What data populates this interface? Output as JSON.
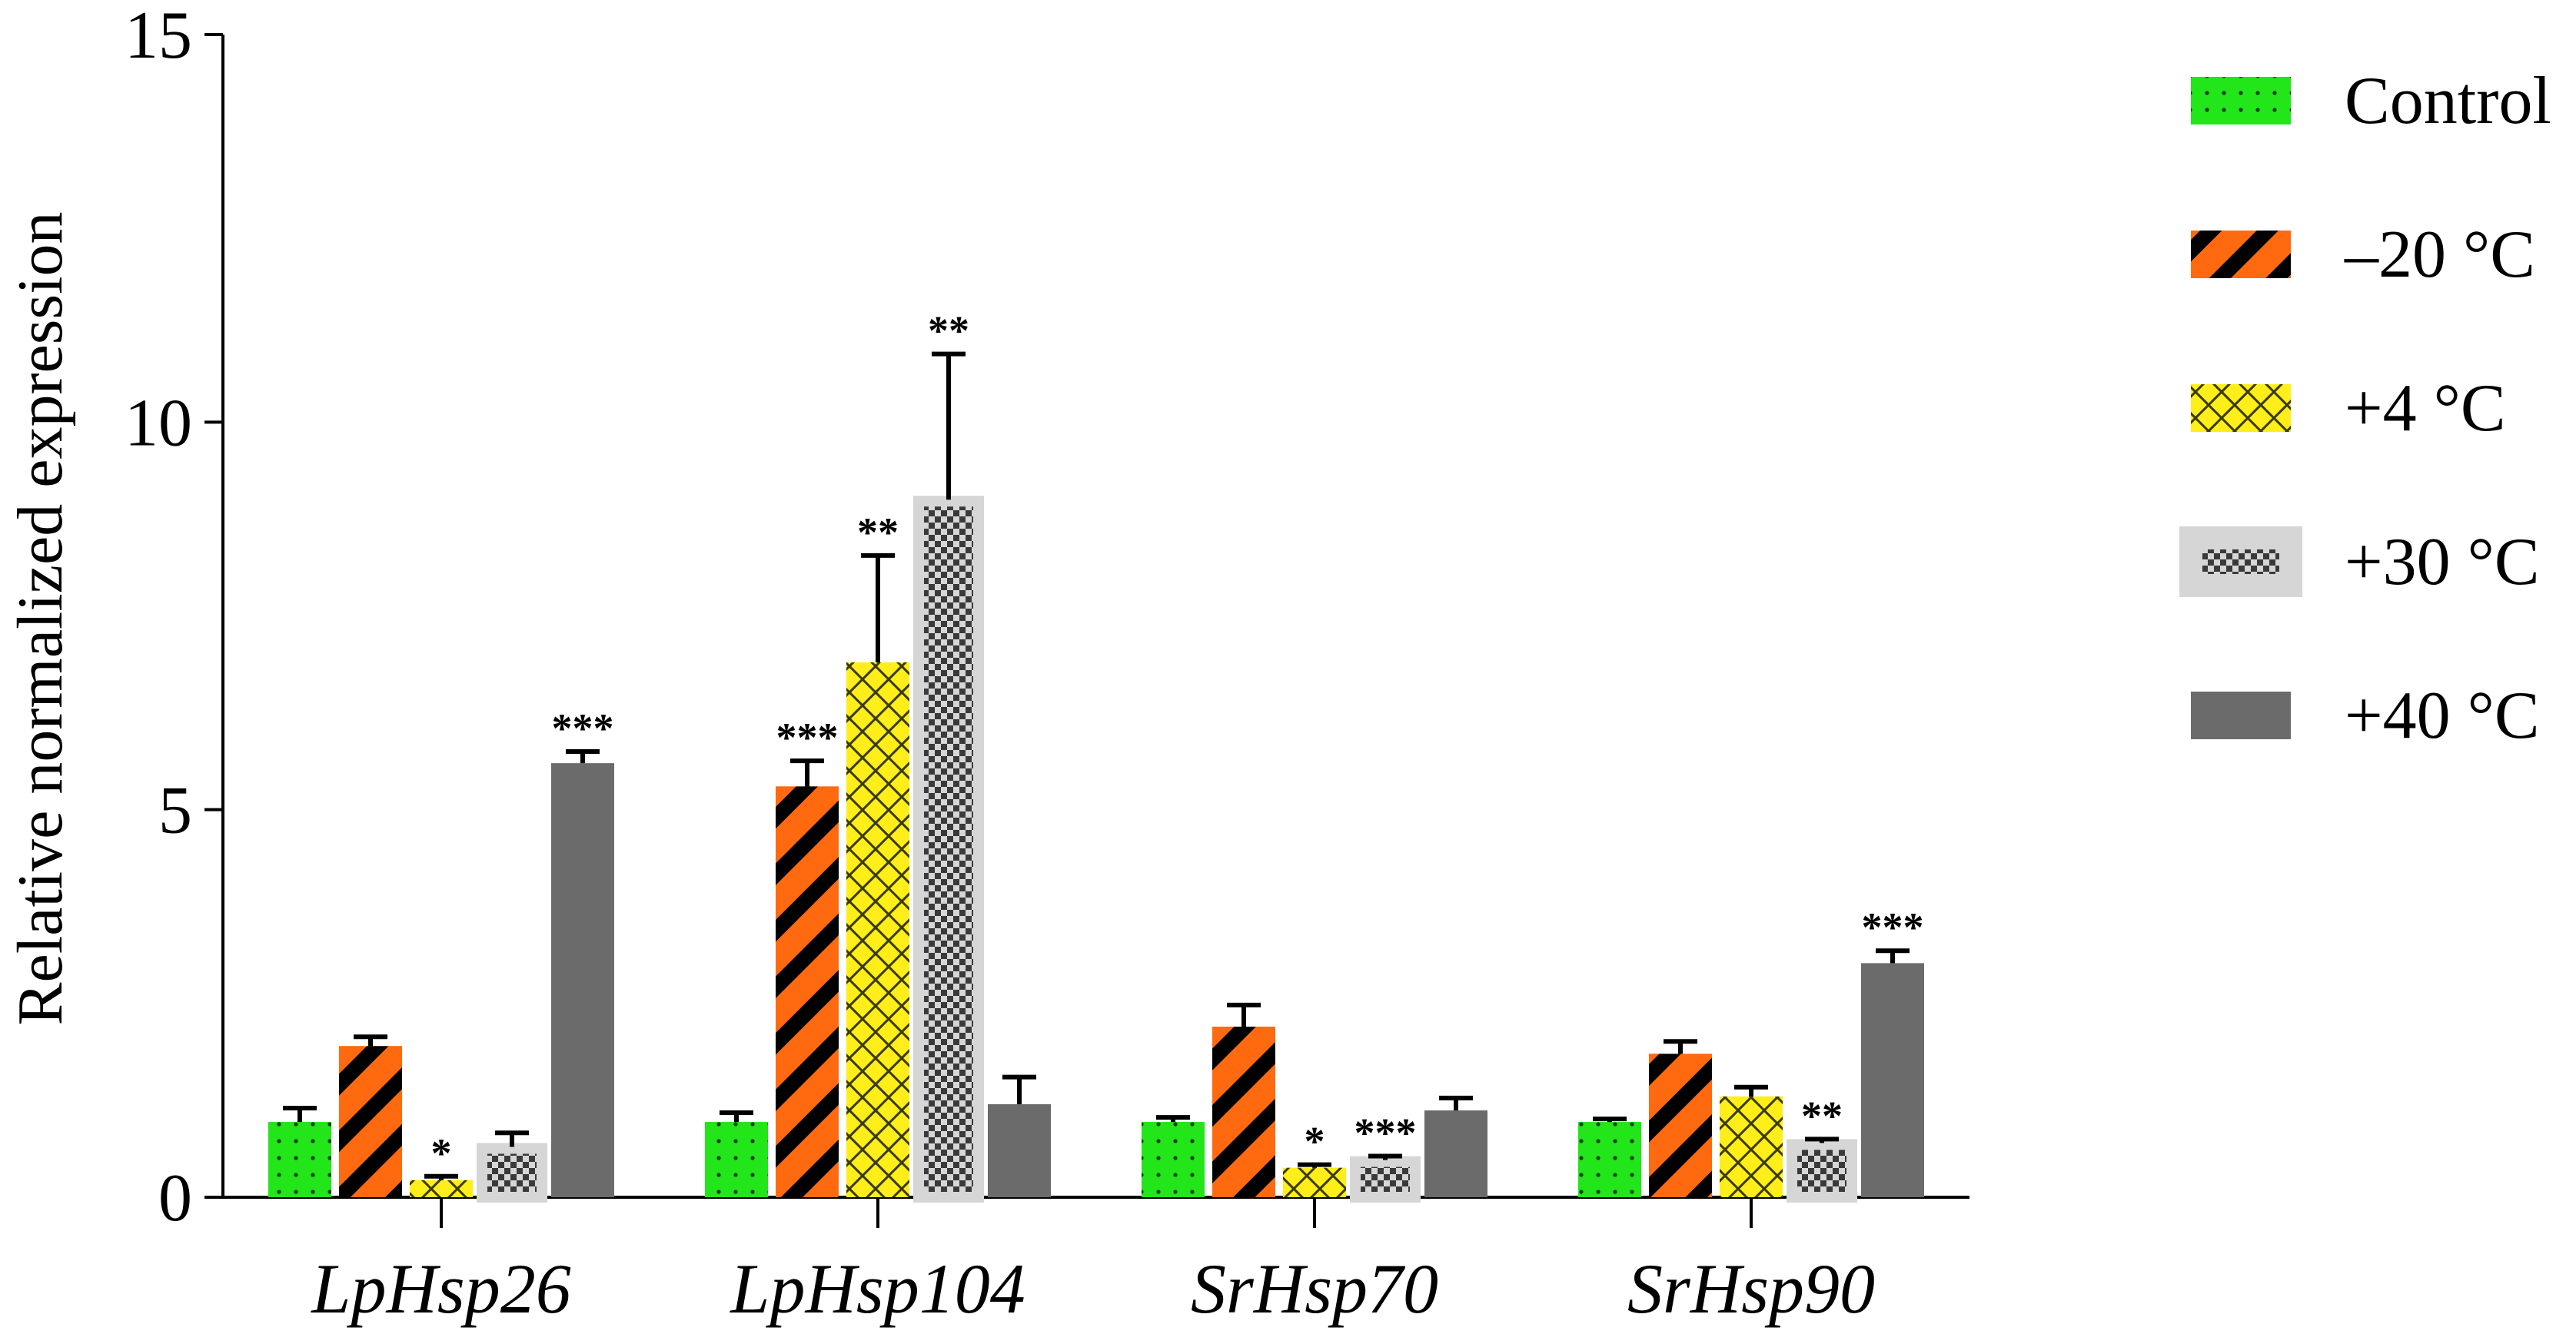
{
  "chart_data": {
    "type": "bar",
    "title": "",
    "xlabel": "",
    "ylabel": "Relative normalized expression",
    "ylim": [
      0,
      15
    ],
    "yticks": [
      0,
      5,
      10,
      15
    ],
    "grid": false,
    "legend_position": "top-right",
    "categories": [
      "LpHsp26",
      "LpHsp104",
      "SrHsp70",
      "SrHsp90"
    ],
    "series": [
      {
        "name": "Control",
        "pattern": "dots",
        "fill": "#22e51a",
        "values": [
          0.97,
          0.97,
          0.97,
          0.97
        ],
        "errors": [
          0.18,
          0.12,
          0.06,
          0.04
        ],
        "significance": [
          "",
          "",
          "",
          ""
        ]
      },
      {
        "name": "–20 °C",
        "pattern": "diagonal-stripes",
        "fill": "#ff6a10",
        "values": [
          1.95,
          5.3,
          2.2,
          1.85
        ],
        "errors": [
          0.12,
          0.33,
          0.28,
          0.16
        ],
        "significance": [
          "",
          "***",
          "",
          ""
        ]
      },
      {
        "name": "+4 °C",
        "pattern": "crosshatch",
        "fill": "#ffee1a",
        "values": [
          0.22,
          6.9,
          0.38,
          1.3
        ],
        "errors": [
          0.05,
          1.38,
          0.04,
          0.12
        ],
        "significance": [
          "*",
          "**",
          "*",
          ""
        ]
      },
      {
        "name": "+30 °C",
        "pattern": "checker",
        "fill": "#d6d6d6",
        "values": [
          0.65,
          9.0,
          0.48,
          0.7
        ],
        "errors": [
          0.18,
          1.88,
          0.05,
          0.05
        ],
        "significance": [
          "",
          "**",
          "***",
          "**"
        ]
      },
      {
        "name": "+40 °C",
        "pattern": "solid",
        "fill": "#6b6b6b",
        "values": [
          5.6,
          1.2,
          1.12,
          3.02
        ],
        "errors": [
          0.15,
          0.35,
          0.16,
          0.16
        ],
        "significance": [
          "***",
          "",
          "",
          "***"
        ]
      }
    ]
  }
}
